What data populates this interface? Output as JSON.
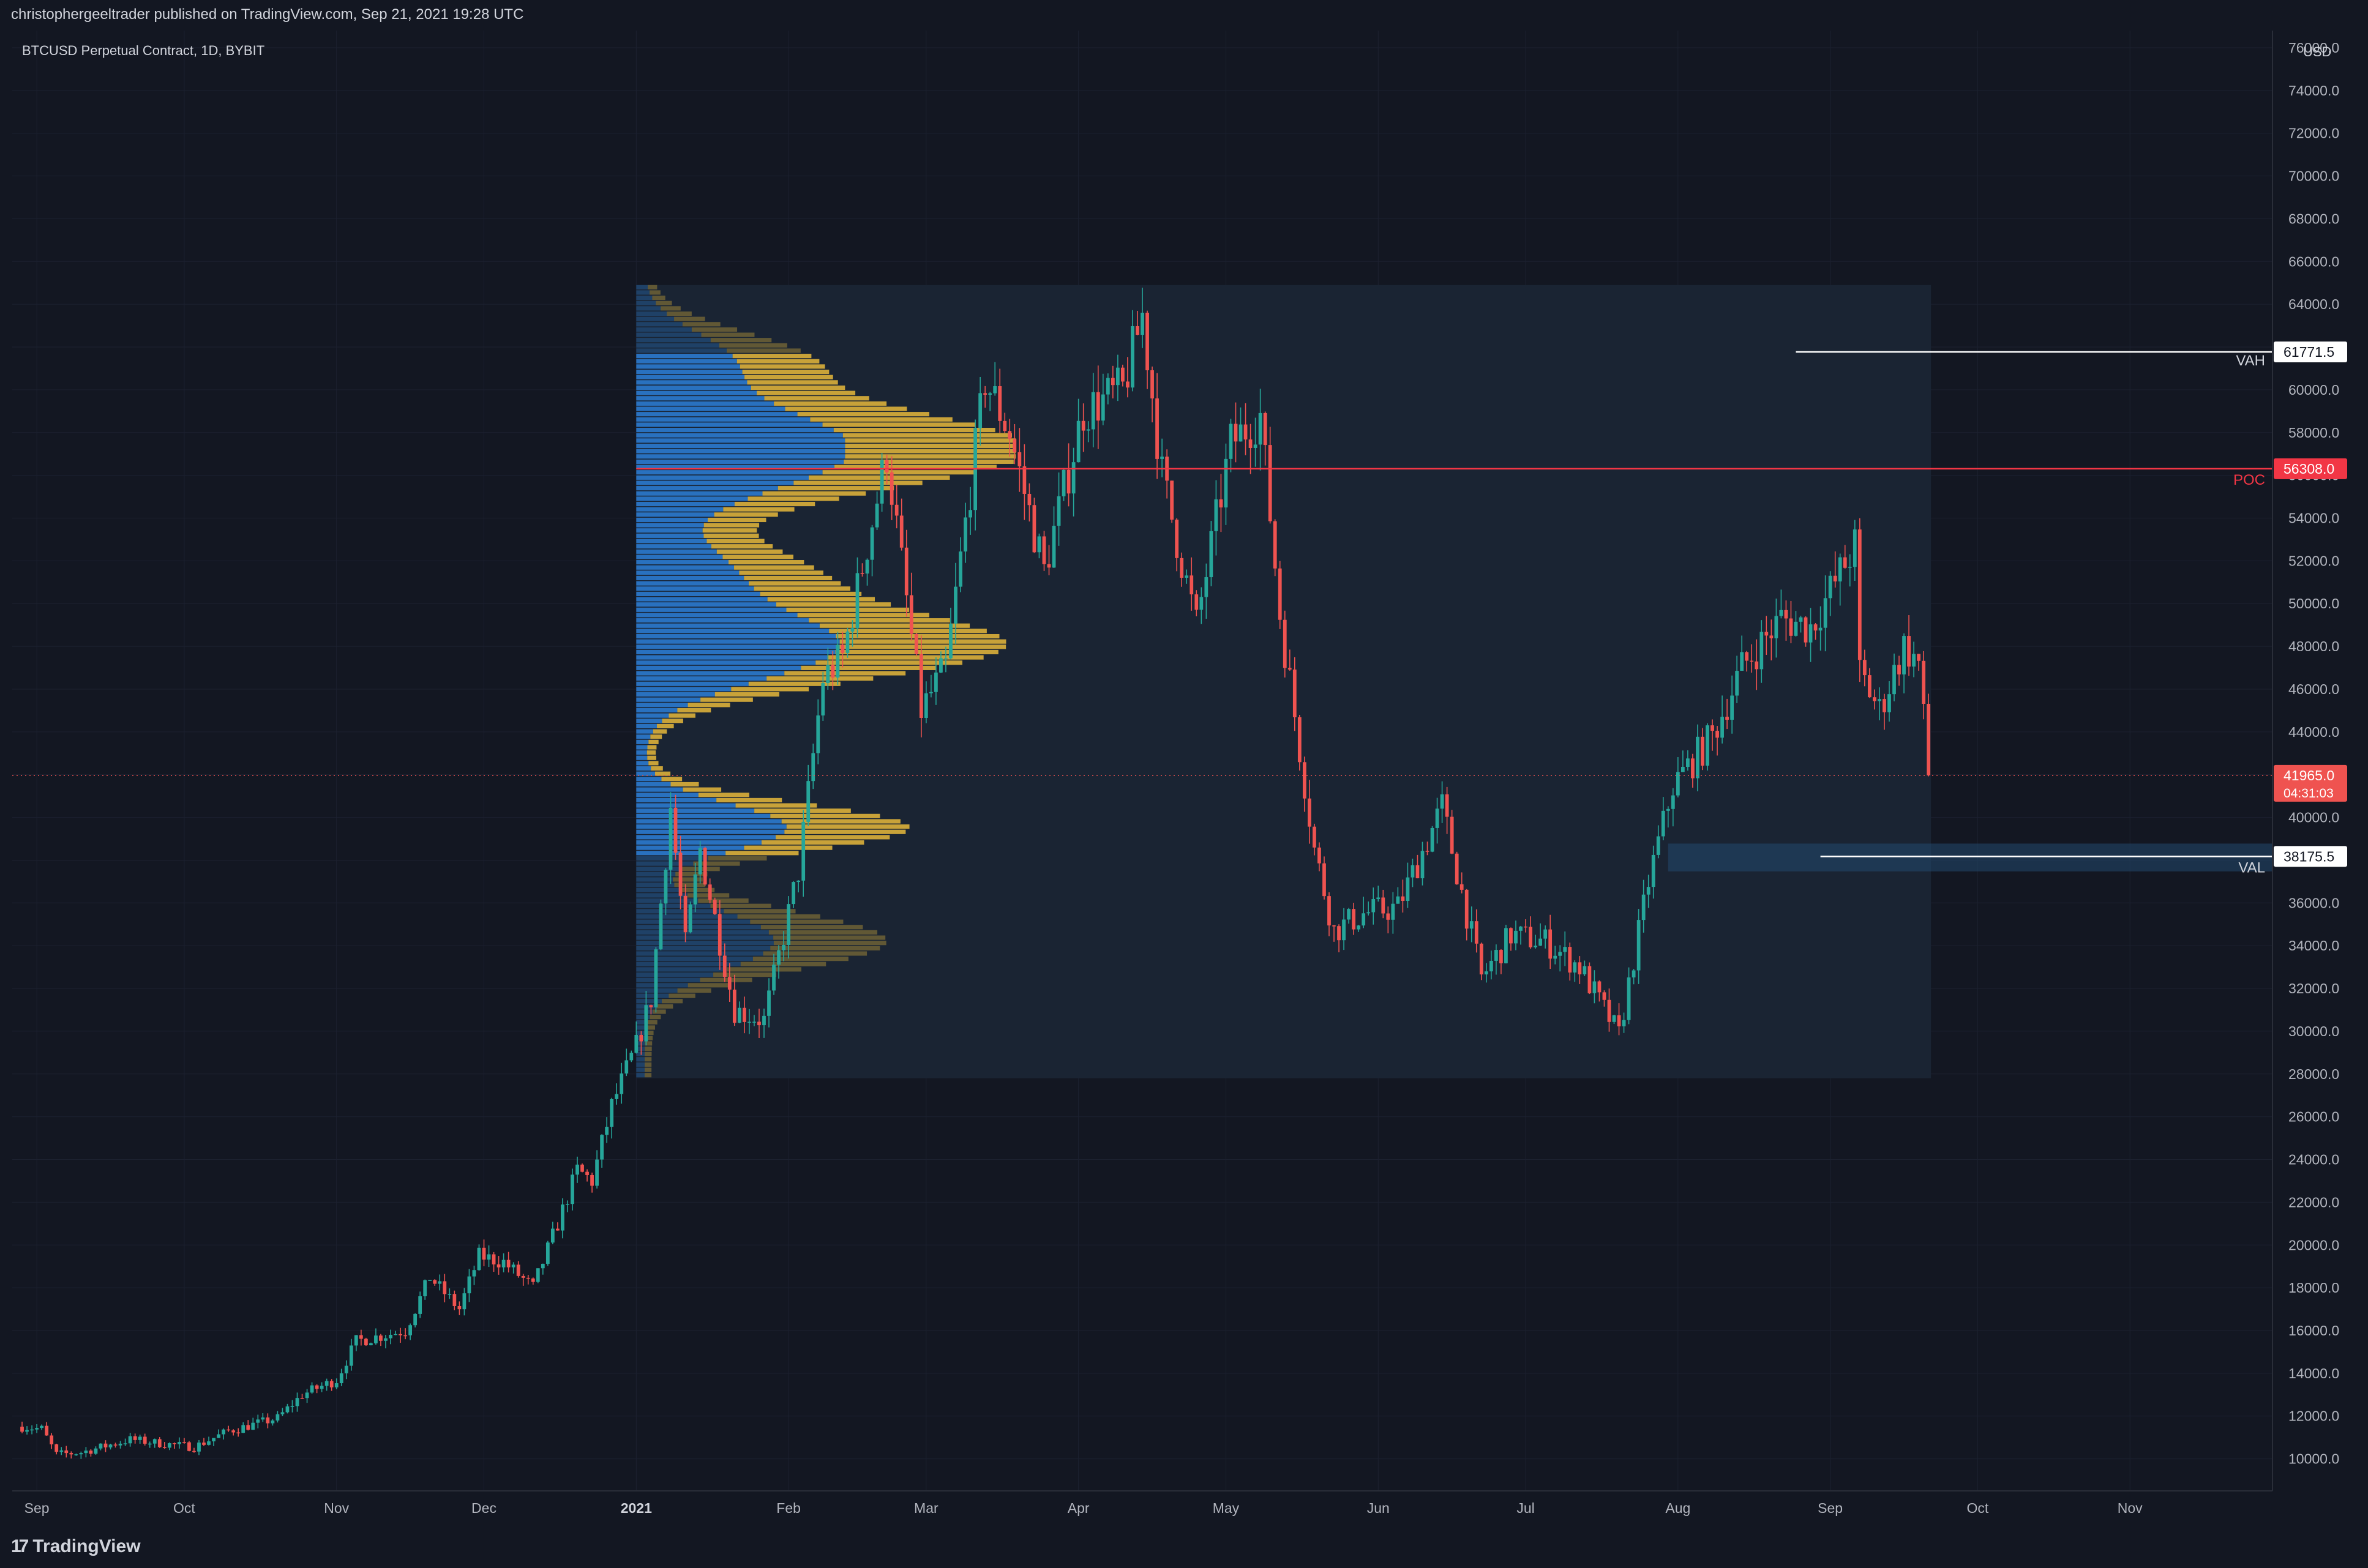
{
  "header": {
    "credit": "christophergeeltrader published on TradingView.com, Sep 21, 2021 19:28 UTC",
    "symbol": "BTCUSD Perpetual Contract, 1D, BYBIT"
  },
  "footer": {
    "logo_text": "TradingView",
    "logo_mark": "17"
  },
  "colors": {
    "background": "#131722",
    "up": "#26a69a",
    "down": "#ef5350",
    "profile_in_area": "#2d7fd8",
    "profile_volume": "#e0b43a",
    "profile_range_bg": "#1a2433",
    "poc": "#f23645",
    "level": "#ffffff",
    "axis_text": "#b2b5be"
  },
  "chart_data": {
    "type": "candlestick",
    "currency": "USD",
    "x_tick_labels": [
      "Sep",
      "Oct",
      "Nov",
      "Dec",
      "2021",
      "Feb",
      "Mar",
      "Apr",
      "May",
      "Jun",
      "Jul",
      "Aug",
      "Sep",
      "Oct",
      "Nov"
    ],
    "y_ticks": [
      10000,
      12000,
      14000,
      16000,
      18000,
      20000,
      22000,
      24000,
      26000,
      28000,
      30000,
      32000,
      34000,
      36000,
      38000,
      40000,
      42000,
      44000,
      46000,
      48000,
      50000,
      52000,
      54000,
      56000,
      58000,
      60000,
      62000,
      64000,
      66000,
      68000,
      70000,
      72000,
      74000,
      76000
    ],
    "y_tick_labels": [
      "10000.0",
      "12000.0",
      "14000.0",
      "16000.0",
      "18000.0",
      "20000.0",
      "22000.0",
      "24000.0",
      "26000.0",
      "28000.0",
      "30000.0",
      "32000.0",
      "34000.0",
      "36000.0",
      "38000.0",
      "40000.0",
      "42000.0",
      "44000.0",
      "46000.0",
      "48000.0",
      "50000.0",
      "52000.0",
      "54000.0",
      "56000.0",
      "58000.0",
      "60000.0",
      "62000.0",
      "64000.0",
      "66000.0",
      "68000.0",
      "70000.0",
      "72000.0",
      "74000.0",
      "76000.0"
    ],
    "ylim": [
      8500,
      76800
    ],
    "close_path": [
      [
        "2020-08-29",
        11500
      ],
      [
        "2020-09-02",
        11400
      ],
      [
        "2020-09-05",
        10200
      ],
      [
        "2020-09-10",
        10300
      ],
      [
        "2020-09-20",
        10900
      ],
      [
        "2020-09-27",
        10700
      ],
      [
        "2020-10-03",
        10550
      ],
      [
        "2020-10-10",
        11300
      ],
      [
        "2020-10-20",
        11900
      ],
      [
        "2020-10-25",
        13000
      ],
      [
        "2020-11-01",
        13700
      ],
      [
        "2020-11-05",
        15500
      ],
      [
        "2020-11-15",
        16000
      ],
      [
        "2020-11-20",
        18500
      ],
      [
        "2020-11-26",
        17000
      ],
      [
        "2020-11-30",
        19500
      ],
      [
        "2020-12-05",
        19200
      ],
      [
        "2020-12-11",
        18000
      ],
      [
        "2020-12-16",
        21000
      ],
      [
        "2020-12-20",
        23500
      ],
      [
        "2020-12-23",
        23000
      ],
      [
        "2020-12-27",
        26500
      ],
      [
        "2021-01-01",
        29300
      ],
      [
        "2021-01-04",
        31500
      ],
      [
        "2021-01-08",
        40500
      ],
      [
        "2021-01-11",
        34000
      ],
      [
        "2021-01-14",
        38500
      ],
      [
        "2021-01-21",
        31000
      ],
      [
        "2021-01-27",
        30500
      ],
      [
        "2021-02-03",
        37500
      ],
      [
        "2021-02-08",
        46500
      ],
      [
        "2021-02-12",
        47500
      ],
      [
        "2021-02-21",
        57000
      ],
      [
        "2021-02-28",
        45000
      ],
      [
        "2021-03-05",
        47000
      ],
      [
        "2021-03-13",
        60500
      ],
      [
        "2021-03-18",
        58000
      ],
      [
        "2021-03-25",
        51500
      ],
      [
        "2021-04-02",
        59000
      ],
      [
        "2021-04-10",
        60000
      ],
      [
        "2021-04-14",
        63500
      ],
      [
        "2021-04-18",
        56000
      ],
      [
        "2021-04-25",
        49000
      ],
      [
        "2021-05-02",
        57500
      ],
      [
        "2021-05-08",
        58800
      ],
      [
        "2021-05-12",
        49500
      ],
      [
        "2021-05-19",
        38500
      ],
      [
        "2021-05-23",
        34700
      ],
      [
        "2021-05-29",
        35500
      ],
      [
        "2021-06-05",
        35800
      ],
      [
        "2021-06-14",
        40500
      ],
      [
        "2021-06-22",
        32500
      ],
      [
        "2021-06-28",
        34500
      ],
      [
        "2021-07-05",
        34200
      ],
      [
        "2021-07-12",
        33000
      ],
      [
        "2021-07-20",
        29800
      ],
      [
        "2021-07-26",
        37000
      ],
      [
        "2021-07-31",
        41500
      ],
      [
        "2021-08-08",
        43800
      ],
      [
        "2021-08-14",
        47000
      ],
      [
        "2021-08-22",
        49300
      ],
      [
        "2021-08-28",
        48900
      ],
      [
        "2021-09-06",
        52700
      ],
      [
        "2021-09-07",
        46800
      ],
      [
        "2021-09-11",
        45000
      ],
      [
        "2021-09-16",
        48000
      ],
      [
        "2021-09-19",
        47200
      ],
      [
        "2021-09-21",
        41965
      ]
    ],
    "volume_profile": {
      "range_start": "2021-01-01",
      "range_end": "2021-09-21",
      "price_range": [
        27800,
        64900
      ],
      "vah": 61771.5,
      "poc": 56308.0,
      "val": 38175.5,
      "vah_label": "61771.5",
      "poc_label": "56308.0",
      "val_label": "38175.5",
      "vah_text": "VAH",
      "poc_text": "POC",
      "val_text": "VAL"
    },
    "last_price": 41965.0,
    "last_price_label": "41965.0",
    "countdown_label": "04:31:03"
  }
}
